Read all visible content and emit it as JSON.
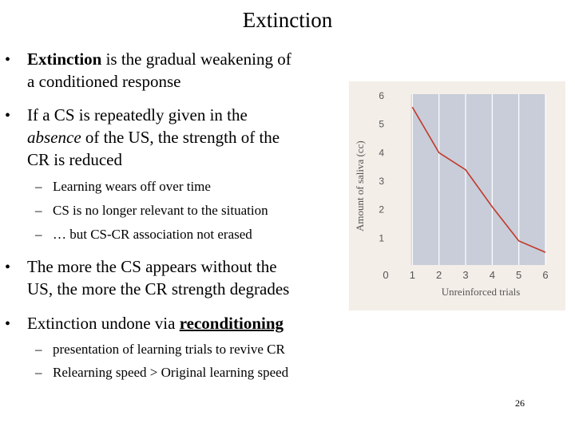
{
  "slide": {
    "title": "Extinction",
    "bullet_char": "•",
    "dash_char": "–",
    "b1_bold": "Extinction",
    "b1_rest_l1": " is the gradual weakening of",
    "b1_l2": "a conditioned response",
    "b2_l1": "If a CS is repeatedly given in the",
    "b2_l2_italic": "absence",
    "b2_l2_rest": " of the US, the strength of the",
    "b2_l3": "CR is reduced",
    "s1": "Learning wears off over time",
    "s2": "CS is no longer relevant to the situation",
    "s3": "… but CS-CR association not erased",
    "b3_l1": "The more the CS appears without the",
    "b3_l2": "US, the more the CR strength degrades",
    "b4_pre": "Extinction undone via ",
    "b4_link": "reconditioning",
    "s4": "presentation of learning trials to revive CR",
    "s5": "Relearning speed > Original learning speed",
    "page_number": "26"
  },
  "chart_data": {
    "type": "line",
    "xlabel": "Unreinforced trials",
    "ylabel": "Amount of saliva (cc)",
    "xlim": [
      0,
      6
    ],
    "ylim": [
      0,
      6
    ],
    "x_ticks": [
      "0",
      "1",
      "2",
      "3",
      "4",
      "5",
      "6"
    ],
    "y_ticks": [
      "1",
      "2",
      "3",
      "4",
      "5",
      "6"
    ],
    "x": [
      1,
      2,
      3,
      4,
      5,
      6
    ],
    "y": [
      5.6,
      4.0,
      3.4,
      2.1,
      0.9,
      0.5
    ],
    "grid": "vertical",
    "colors": {
      "plot_bg": "#c8cdd9",
      "frame_bg": "#f4eee8",
      "line": "#c0392b",
      "grid": "#ffffff",
      "text": "#555555"
    }
  }
}
